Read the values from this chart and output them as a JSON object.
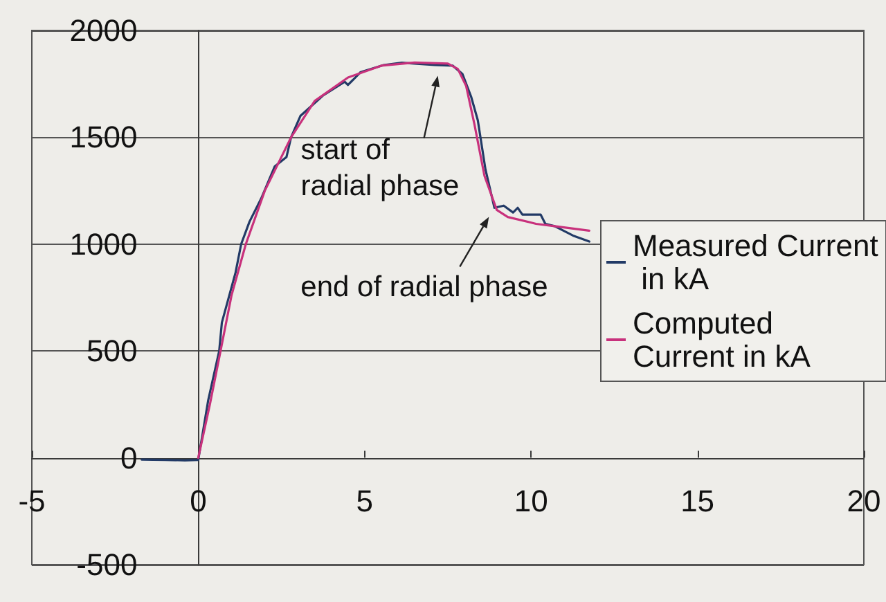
{
  "chart_data": {
    "type": "line",
    "series": [
      {
        "name": "Measured Current in kA",
        "color": "#223a66",
        "x": [
          -1.7,
          -1.0,
          -0.4,
          0,
          0.3,
          0.63,
          0.71,
          1.12,
          1.29,
          1.54,
          1.89,
          2.3,
          2.65,
          2.79,
          3.07,
          3.76,
          4.4,
          4.5,
          4.88,
          5.57,
          6.12,
          7.1,
          7.65,
          7.94,
          8.2,
          8.4,
          8.63,
          8.9,
          9.18,
          9.46,
          9.6,
          9.74,
          10.29,
          10.43,
          10.71,
          11.26,
          11.75
        ],
        "values": [
          -8,
          -10,
          -12,
          -10,
          270,
          500,
          633,
          866,
          1000,
          1105,
          1213,
          1364,
          1407,
          1500,
          1600,
          1697,
          1760,
          1745,
          1805,
          1838,
          1849,
          1838,
          1835,
          1796,
          1690,
          1580,
          1350,
          1170,
          1180,
          1148,
          1170,
          1138,
          1138,
          1095,
          1084,
          1040,
          1012
        ]
      },
      {
        "name": "Computed Current in kA",
        "color": "#c8317c",
        "x": [
          0,
          0.35,
          0.67,
          1.0,
          1.43,
          2.0,
          2.79,
          3.5,
          4.5,
          5.5,
          6.5,
          7.5,
          7.8,
          8.05,
          8.3,
          8.6,
          8.97,
          9.3,
          10.15,
          10.71,
          11.75
        ],
        "values": [
          0,
          250,
          500,
          760,
          1000,
          1250,
          1500,
          1670,
          1780,
          1835,
          1850,
          1845,
          1820,
          1740,
          1560,
          1320,
          1160,
          1127,
          1095,
          1084,
          1063
        ]
      }
    ],
    "xlim": [
      -5,
      20
    ],
    "xticks": [
      -5,
      0,
      5,
      10,
      15,
      20
    ],
    "ylim": [
      -500,
      2000
    ],
    "yticks": [
      -500,
      0,
      500,
      1000,
      1500,
      2000
    ],
    "grid": "y",
    "legend": "right",
    "marker": "none",
    "annotations": [
      {
        "text": "start of radial phase",
        "x": 7.2,
        "y": 1840
      },
      {
        "text": "end of radial phase",
        "x": 8.9,
        "y": 1160
      }
    ]
  }
}
